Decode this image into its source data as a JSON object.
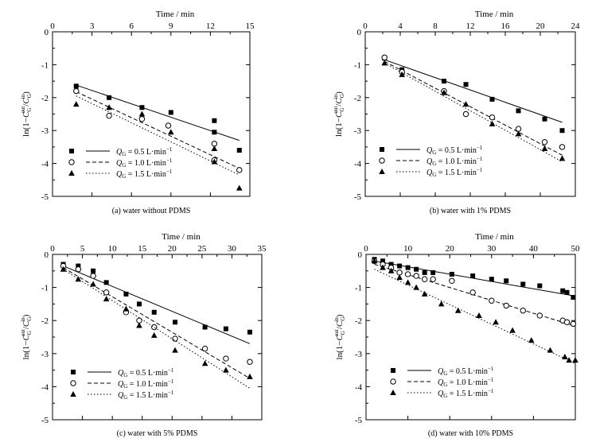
{
  "chart_data": [
    {
      "type": "scatter",
      "caption": "(a) water without PDMS",
      "xlabel": "Time / min",
      "ylabel": "ln(1−C_G^out/C_G^in)",
      "xlim": [
        0,
        15
      ],
      "ylim": [
        -5,
        0
      ],
      "xticks": [
        0,
        3,
        6,
        9,
        12,
        15
      ],
      "xticklabels": [
        "0",
        "3",
        "6",
        "9",
        "12",
        "15"
      ],
      "yticks": [
        0,
        -1,
        -2,
        -3,
        -4,
        -5
      ],
      "yticklabels": [
        "0",
        "-1",
        "-2",
        "-3",
        "-4",
        "-5"
      ],
      "legend": [
        "Q_G = 0.5 L·min⁻¹",
        "Q_G = 1.0 L·min⁻¹",
        "Q_G = 1.5 L·min⁻¹"
      ],
      "series": [
        {
          "name": "Q_G = 0.5 L·min⁻¹",
          "marker": "square",
          "line": "solid",
          "x": [
            1.8,
            4.3,
            6.8,
            9.0,
            12.3,
            12.3,
            14.2
          ],
          "y": [
            -1.65,
            -2.0,
            -2.3,
            -2.45,
            -2.7,
            -3.05,
            -3.6
          ],
          "fit": [
            [
              1.8,
              -1.62
            ],
            [
              14.2,
              -3.3
            ]
          ]
        },
        {
          "name": "Q_G = 1.0 L·min⁻¹",
          "marker": "circle",
          "line": "dashed",
          "x": [
            1.8,
            4.3,
            6.8,
            8.8,
            12.3,
            12.3,
            14.2
          ],
          "y": [
            -1.8,
            -2.55,
            -2.65,
            -2.85,
            -3.4,
            -3.9,
            -4.2
          ],
          "fit": [
            [
              1.8,
              -1.82
            ],
            [
              14.2,
              -4.15
            ]
          ]
        },
        {
          "name": "Q_G = 1.5 L·min⁻¹",
          "marker": "triangle",
          "line": "dotted",
          "x": [
            1.8,
            4.3,
            6.8,
            9.0,
            12.3,
            12.3,
            14.2
          ],
          "y": [
            -2.2,
            -2.3,
            -2.5,
            -3.05,
            -3.55,
            -3.95,
            -4.75
          ],
          "fit": [
            [
              1.8,
              -1.95
            ],
            [
              14.2,
              -4.35
            ]
          ]
        }
      ]
    },
    {
      "type": "scatter",
      "caption": "(b) water with 1% PDMS",
      "xlabel": "Time / min",
      "ylabel": "ln(1−C_G^out/C_G^in)",
      "xlim": [
        0,
        24
      ],
      "ylim": [
        -5,
        0
      ],
      "xticks": [
        0,
        4,
        8,
        12,
        16,
        20,
        24
      ],
      "xticklabels": [
        "0",
        "4",
        "8",
        "12",
        "16",
        "20",
        "24"
      ],
      "yticks": [
        0,
        -1,
        -2,
        -3,
        -4,
        -5
      ],
      "yticklabels": [
        "0",
        "-1",
        "-2",
        "-3",
        "-4",
        "-5"
      ],
      "legend": [
        "Q_G = 0.5 L·min⁻¹",
        "Q_G = 1.0 L·min⁻¹",
        "Q_G = 1.5 L·min⁻¹"
      ],
      "series": [
        {
          "name": "Q_G = 0.5 L·min⁻¹",
          "marker": "square",
          "line": "solid",
          "x": [
            2.2,
            4.2,
            9.0,
            11.5,
            14.5,
            17.5,
            20.5,
            22.5
          ],
          "y": [
            -0.8,
            -1.15,
            -1.5,
            -1.6,
            -2.05,
            -2.4,
            -2.65,
            -3.0
          ],
          "fit": [
            [
              2.2,
              -0.85
            ],
            [
              22.5,
              -2.75
            ]
          ]
        },
        {
          "name": "Q_G = 1.0 L·min⁻¹",
          "marker": "circle",
          "line": "dashed",
          "x": [
            2.2,
            4.2,
            9.0,
            11.5,
            14.5,
            17.5,
            20.5,
            22.5
          ],
          "y": [
            -0.78,
            -1.22,
            -1.8,
            -2.5,
            -2.6,
            -2.95,
            -3.35,
            -3.5
          ],
          "fit": [
            [
              2.2,
              -0.9
            ],
            [
              22.5,
              -3.75
            ]
          ]
        },
        {
          "name": "Q_G = 1.5 L·min⁻¹",
          "marker": "triangle",
          "line": "dotted",
          "x": [
            2.2,
            4.2,
            9.0,
            11.5,
            14.5,
            17.5,
            20.5,
            22.5
          ],
          "y": [
            -0.95,
            -1.3,
            -1.85,
            -2.2,
            -2.8,
            -3.1,
            -3.55,
            -3.85
          ],
          "fit": [
            [
              2.2,
              -0.95
            ],
            [
              22.5,
              -3.95
            ]
          ]
        }
      ]
    },
    {
      "type": "scatter",
      "caption": "(c) water with 5% PDMS",
      "xlabel": "Time / min",
      "ylabel": "ln(1−C_G^out/C_G^in)",
      "xlim": [
        0,
        35
      ],
      "ylim": [
        -5,
        0
      ],
      "xticks": [
        0,
        5,
        10,
        15,
        20,
        25,
        30,
        35
      ],
      "xticklabels": [
        "0",
        "5",
        "10",
        "15",
        "20",
        "25",
        "30",
        "35"
      ],
      "yticks": [
        0,
        -1,
        -2,
        -3,
        -4,
        -5
      ],
      "yticklabels": [
        "0",
        "-1",
        "-2",
        "-3",
        "-4",
        "-5"
      ],
      "legend": [
        "Q_G = 0.5 L·min⁻¹",
        "Q_G = 1.0 L·min⁻¹",
        "Q_G = 1.5 L·min⁻¹"
      ],
      "series": [
        {
          "name": "Q_G = 0.5 L·min⁻¹",
          "marker": "square",
          "line": "solid",
          "x": [
            1.8,
            4.3,
            6.8,
            9.0,
            12.3,
            14.5,
            17.0,
            20.5,
            25.5,
            29.0,
            33.0
          ],
          "y": [
            -0.3,
            -0.35,
            -0.5,
            -0.85,
            -1.2,
            -1.5,
            -1.75,
            -2.05,
            -2.2,
            -2.25,
            -2.35
          ],
          "fit": [
            [
              1.8,
              -0.35
            ],
            [
              33.0,
              -2.7
            ]
          ]
        },
        {
          "name": "Q_G = 1.0 L·min⁻¹",
          "marker": "circle",
          "line": "dashed",
          "x": [
            1.8,
            4.3,
            6.8,
            9.0,
            12.3,
            14.5,
            17.0,
            20.5,
            25.5,
            29.0,
            33.0
          ],
          "y": [
            -0.35,
            -0.45,
            -0.65,
            -1.15,
            -1.75,
            -2.0,
            -2.2,
            -2.55,
            -2.85,
            -3.15,
            -3.25
          ],
          "fit": [
            [
              1.8,
              -0.4
            ],
            [
              33.0,
              -3.75
            ]
          ]
        },
        {
          "name": "Q_G = 1.5 L·min⁻¹",
          "marker": "triangle",
          "line": "dotted",
          "x": [
            1.8,
            4.3,
            6.8,
            9.0,
            12.3,
            14.5,
            17.0,
            20.5,
            25.5,
            29.0,
            33.0
          ],
          "y": [
            -0.45,
            -0.75,
            -0.9,
            -1.35,
            -1.65,
            -2.15,
            -2.45,
            -2.9,
            -3.3,
            -3.5,
            -3.7
          ],
          "fit": [
            [
              1.8,
              -0.45
            ],
            [
              33.0,
              -4.05
            ]
          ]
        }
      ]
    },
    {
      "type": "scatter",
      "caption": "(d) water with 10% PDMS",
      "xlabel": "Time / min",
      "ylabel": "ln(1−C_G^out/C_G^in)",
      "xlim": [
        0,
        50
      ],
      "ylim": [
        -5,
        0
      ],
      "xticks": [
        0,
        10,
        20,
        30,
        40,
        50
      ],
      "xticklabels": [
        "0",
        "10",
        "20",
        "30",
        "40",
        "50"
      ],
      "yticks": [
        0,
        -1,
        -2,
        -3,
        -4,
        -5
      ],
      "yticklabels": [
        "0",
        "-1",
        "-2",
        "-3",
        "-4",
        "-5"
      ],
      "legend": [
        "Q_G = 0.5 L·min⁻¹",
        "Q_G = 1.0 L·min⁻¹",
        "Q_G = 1.5 L·min⁻¹"
      ],
      "series": [
        {
          "name": "Q_G = 0.5 L·min⁻¹",
          "marker": "square",
          "line": "solid",
          "x": [
            2.0,
            4.0,
            6.0,
            8.0,
            10.0,
            12.0,
            14.0,
            16.0,
            20.5,
            25.5,
            30.0,
            33.5,
            37.5,
            41.5,
            47.0,
            48.0,
            49.5
          ],
          "y": [
            -0.15,
            -0.2,
            -0.3,
            -0.35,
            -0.4,
            -0.45,
            -0.55,
            -0.55,
            -0.6,
            -0.65,
            -0.75,
            -0.8,
            -0.9,
            -0.95,
            -1.1,
            -1.15,
            -1.3
          ],
          "fit": [
            [
              2.0,
              -0.2
            ],
            [
              49.5,
              -1.25
            ]
          ]
        },
        {
          "name": "Q_G = 1.0 L·min⁻¹",
          "marker": "circle",
          "line": "dashed",
          "x": [
            2.0,
            4.0,
            6.0,
            8.0,
            10.0,
            12.0,
            14.0,
            16.0,
            20.5,
            25.5,
            30.0,
            33.5,
            37.5,
            41.5,
            47.0,
            48.0,
            49.5
          ],
          "y": [
            -0.2,
            -0.3,
            -0.4,
            -0.55,
            -0.6,
            -0.65,
            -0.75,
            -0.75,
            -0.8,
            -1.15,
            -1.4,
            -1.55,
            -1.7,
            -1.85,
            -2.0,
            -2.05,
            -2.1
          ],
          "fit": [
            [
              2.0,
              -0.3
            ],
            [
              49.5,
              -2.15
            ]
          ]
        },
        {
          "name": "Q_G = 1.5 L·min⁻¹",
          "marker": "triangle",
          "line": "dotted",
          "x": [
            2.0,
            4.0,
            6.0,
            8.0,
            10.0,
            12.0,
            14.0,
            18.0,
            22.0,
            27.0,
            31.0,
            35.0,
            39.5,
            44.0,
            47.5,
            48.5,
            50.0
          ],
          "y": [
            -0.2,
            -0.4,
            -0.5,
            -0.7,
            -0.85,
            -1.0,
            -1.2,
            -1.5,
            -1.7,
            -1.85,
            -2.05,
            -2.3,
            -2.6,
            -2.9,
            -3.1,
            -3.2,
            -3.2
          ],
          "fit": [
            [
              2.0,
              -0.45
            ],
            [
              50.0,
              -3.3
            ]
          ]
        }
      ]
    }
  ]
}
